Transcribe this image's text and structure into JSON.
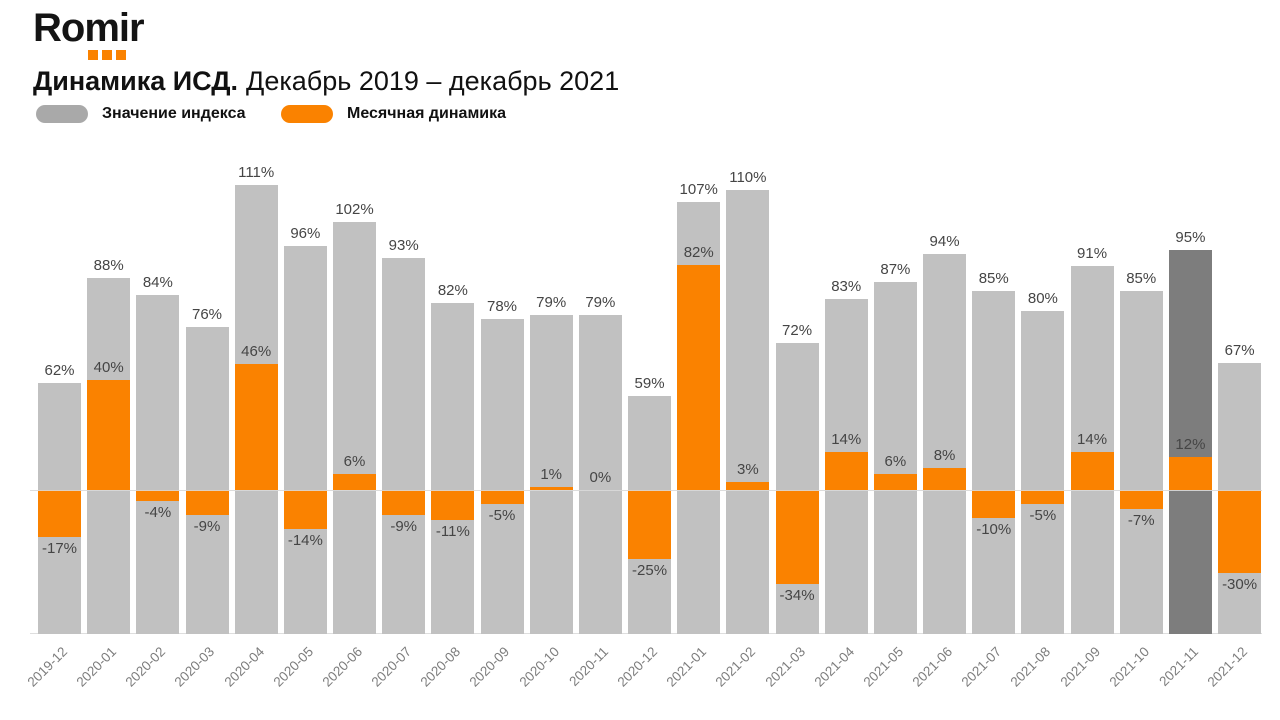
{
  "logo": {
    "text": "Romir"
  },
  "title": {
    "bold": "Динамика ИСД.",
    "regular": "Декабрь 2019 – декабрь 2021"
  },
  "legend": {
    "index": {
      "label": "Значение индекса",
      "color": "#a9a9a9"
    },
    "monthly": {
      "label": "Месячная динамика",
      "color": "#fa8200"
    }
  },
  "colors": {
    "logo_text": "#141414",
    "logo_dots": "#fa8200",
    "index_bar": "#c1c1c1",
    "index_bar_highlight": "#7d7d7d",
    "monthly_bar": "#fa8200",
    "zero_line": "#d9d9d9",
    "base_line": "#dedede",
    "value_label": "#454545",
    "tick_label": "#7d7d7d"
  },
  "chart_data": {
    "type": "bar",
    "title": "Динамика ИСД. Декабрь 2019 – декабрь 2021",
    "categories": [
      "2019-12",
      "2020-01",
      "2020-02",
      "2020-03",
      "2020-04",
      "2020-05",
      "2020-06",
      "2020-07",
      "2020-08",
      "2020-09",
      "2020-10",
      "2020-11",
      "2020-12",
      "2021-01",
      "2021-02",
      "2021-03",
      "2021-04",
      "2021-05",
      "2021-06",
      "2021-07",
      "2021-08",
      "2021-09",
      "2021-10",
      "2021-11",
      "2021-12"
    ],
    "series": [
      {
        "name": "Значение индекса",
        "values": [
          62,
          88,
          84,
          76,
          111,
          96,
          102,
          93,
          82,
          78,
          79,
          79,
          59,
          107,
          110,
          72,
          83,
          87,
          94,
          85,
          80,
          91,
          85,
          95,
          67
        ],
        "color": "#c1c1c1",
        "highlight_index": 23,
        "highlight_color": "#7d7d7d"
      },
      {
        "name": "Месячная динамика",
        "values": [
          -17,
          40,
          -4,
          -9,
          46,
          -14,
          6,
          -9,
          -11,
          -5,
          1,
          0,
          -25,
          82,
          3,
          -34,
          14,
          6,
          8,
          -10,
          -5,
          14,
          -7,
          12,
          -30
        ],
        "color": "#fa8200"
      }
    ],
    "value_suffix": "%",
    "xlabel": "",
    "ylabel": "",
    "axes_visible": false,
    "grid": false,
    "legend_position": "top-left",
    "baseline": 0
  }
}
